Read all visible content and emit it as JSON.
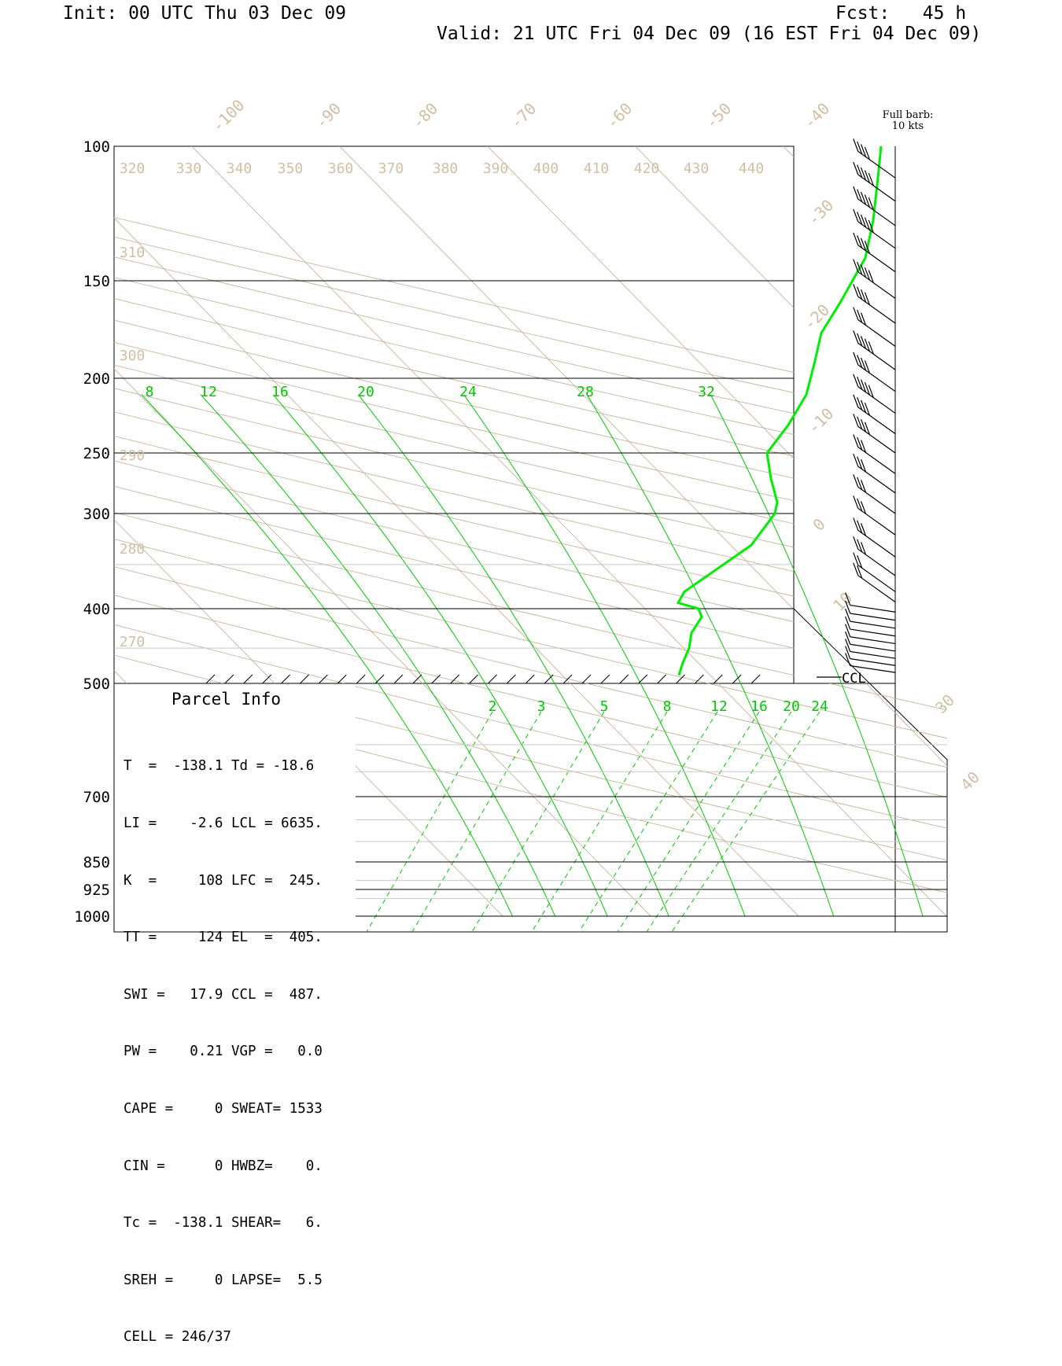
{
  "header": {
    "init": "Init: 00 UTC Thu 03 Dec 09",
    "fcst": "Fcst:   45 h",
    "valid": "Valid: 21 UTC Fri 04 Dec 09 (16 EST Fri 04 Dec 09)"
  },
  "barb_note": [
    "Full barb:",
    "10 kts"
  ],
  "ccl_label": "CCL",
  "parcel_info": {
    "title": "Parcel Info",
    "rows": [
      "T  =  -138.1 Td = -18.6",
      "LI =    -2.6 LCL = 6635.",
      "K  =     108 LFC =  245.",
      "TT =     124 EL  =  405.",
      "SWI =   17.9 CCL =  487.",
      "PW =    0.21 VGP =   0.0",
      "CAPE =     0 SWEAT= 1533",
      "CIN =      0 HWBZ=    0.",
      "Tc =  -138.1 SHEAR=   6.",
      "SREH =     0 LAPSE=  5.5",
      "CELL = 246/37"
    ]
  },
  "chart_data": {
    "type": "line",
    "chart_kind": "skew-T log-p sounding",
    "y_axis": {
      "quantity": "pressure (hPa)",
      "ticks": [
        100,
        150,
        200,
        250,
        300,
        400,
        500,
        700,
        850,
        925,
        1000
      ],
      "scale": "log"
    },
    "isotherm_labels": [
      -100,
      -90,
      -80,
      -70,
      -60,
      -50,
      -40,
      -30,
      -20,
      -10,
      0,
      10,
      30,
      40
    ],
    "dry_adiabat_labels": [
      320,
      330,
      340,
      350,
      360,
      370,
      380,
      390,
      400,
      410,
      420,
      430,
      440,
      310,
      300,
      290,
      280,
      270
    ],
    "moist_adiabat_labels": [
      8,
      12,
      16,
      20,
      24,
      28,
      32
    ],
    "mixing_ratio_labels": [
      2,
      3,
      5,
      8,
      12,
      16,
      20,
      24
    ],
    "series": [
      {
        "color": "#00ee00",
        "points": [
          {
            "p": 488,
            "t": 27
          },
          {
            "p": 470,
            "t": 27.5
          },
          {
            "p": 450,
            "t": 28
          },
          {
            "p": 430,
            "t": 29.5
          },
          {
            "p": 410,
            "t": 30.5
          },
          {
            "p": 400,
            "t": 28
          },
          {
            "p": 393,
            "t": 25
          },
          {
            "p": 380,
            "t": 22
          },
          {
            "p": 330,
            "t": 12
          },
          {
            "p": 300,
            "t": 3
          },
          {
            "p": 290,
            "t": -3
          },
          {
            "p": 270,
            "t": -6
          },
          {
            "p": 250,
            "t": -9.5
          },
          {
            "p": 230,
            "t": -10
          },
          {
            "p": 210,
            "t": -16
          },
          {
            "p": 190,
            "t": -21
          },
          {
            "p": 175,
            "t": -27
          },
          {
            "p": 160,
            "t": -32
          },
          {
            "p": 140,
            "t": -37
          },
          {
            "p": 125,
            "t": -40
          },
          {
            "p": 110,
            "t": -42
          },
          {
            "p": 100,
            "t": -43
          }
        ]
      }
    ],
    "wind_barbs": {
      "unit": "kts",
      "full_barb_kts": 10,
      "levels": [
        {
          "p": 110,
          "kts": 40
        },
        {
          "p": 118,
          "kts": 45
        },
        {
          "p": 127,
          "kts": 45
        },
        {
          "p": 136,
          "kts": 45
        },
        {
          "p": 146,
          "kts": 40
        },
        {
          "p": 158,
          "kts": 45
        },
        {
          "p": 170,
          "kts": 40
        },
        {
          "p": 182,
          "kts": 30
        },
        {
          "p": 195,
          "kts": 50
        },
        {
          "p": 208,
          "kts": 40
        },
        {
          "p": 222,
          "kts": 50
        },
        {
          "p": 236,
          "kts": 40
        },
        {
          "p": 250,
          "kts": 40
        },
        {
          "p": 266,
          "kts": 30
        },
        {
          "p": 282,
          "kts": 30
        },
        {
          "p": 300,
          "kts": 30
        },
        {
          "p": 320,
          "kts": 30
        },
        {
          "p": 342,
          "kts": 30
        },
        {
          "p": 362,
          "kts": 30
        },
        {
          "p": 380,
          "kts": 20
        },
        {
          "p": 392,
          "kts": 20
        },
        {
          "p": 404,
          "kts": 10
        },
        {
          "p": 414,
          "kts": 10
        },
        {
          "p": 424,
          "kts": 10
        },
        {
          "p": 434,
          "kts": 10
        },
        {
          "p": 444,
          "kts": 10
        },
        {
          "p": 454,
          "kts": 10
        },
        {
          "p": 464,
          "kts": 10
        },
        {
          "p": 474,
          "kts": 10
        },
        {
          "p": 484,
          "kts": 10
        }
      ]
    },
    "ccl_pressure": 487
  },
  "colors": {
    "thermo_lines": "#c8b49b",
    "thermo_labels": "#d2bea4",
    "green": "#00c800",
    "sounding": "#00ee00",
    "grid": "#000000",
    "faint_grid": "#c8c8c8"
  }
}
